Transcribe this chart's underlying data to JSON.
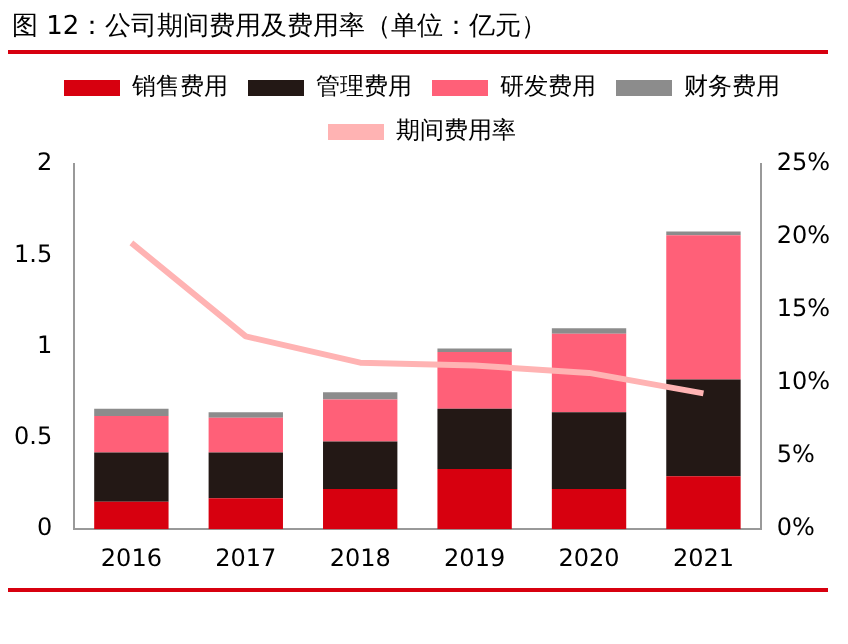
{
  "chart_data": {
    "type": "bar",
    "title": "图 12：公司期间费用及费用率（单位：亿元）",
    "stacked": true,
    "categories": [
      "2016",
      "2017",
      "2018",
      "2019",
      "2020",
      "2021"
    ],
    "series": [
      {
        "name": "销售费用",
        "color": "#d7000f",
        "values": [
          0.15,
          0.17,
          0.22,
          0.33,
          0.22,
          0.29
        ]
      },
      {
        "name": "管理费用",
        "color": "#231815",
        "values": [
          0.27,
          0.25,
          0.26,
          0.33,
          0.42,
          0.53
        ]
      },
      {
        "name": "研发费用",
        "color": "#ff6078",
        "values": [
          0.2,
          0.19,
          0.23,
          0.31,
          0.43,
          0.79
        ]
      },
      {
        "name": "财务费用",
        "color": "#8c8c8c",
        "values": [
          0.04,
          0.03,
          0.04,
          0.02,
          0.03,
          0.02
        ]
      },
      {
        "name": "期间费用率",
        "type": "line",
        "axis": "y2",
        "color": "#ffb3b3",
        "values": [
          19.6,
          13.2,
          11.4,
          11.2,
          10.7,
          9.3
        ]
      }
    ],
    "ylim": [
      0,
      2
    ],
    "yticks": [
      0,
      0.5,
      1,
      1.5,
      2
    ],
    "y2lim": [
      0,
      25
    ],
    "y2ticks": [
      {
        "value": 0,
        "label": "0%"
      },
      {
        "value": 5,
        "label": "5%"
      },
      {
        "value": 10,
        "label": "10%"
      },
      {
        "value": 15,
        "label": "15%"
      },
      {
        "value": 20,
        "label": "20%"
      },
      {
        "value": 25,
        "label": "25%"
      }
    ],
    "grid": false,
    "legend": "top",
    "marker": "none"
  }
}
